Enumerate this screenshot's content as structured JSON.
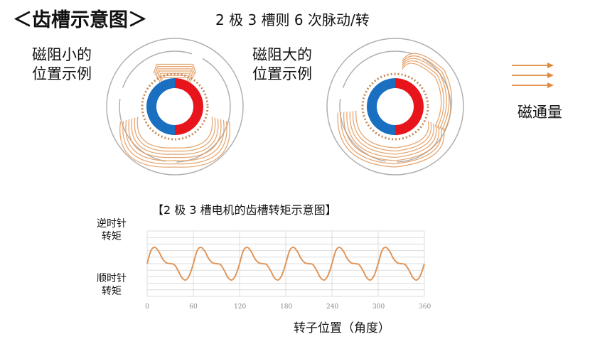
{
  "title": "＜齿槽示意图＞",
  "subtitle": "2 极 3 槽则 6 次脉动/转",
  "motor_left": {
    "label_line1": "磁阻小的",
    "label_line2": "位置示例"
  },
  "motor_right": {
    "label_line1": "磁阻大的",
    "label_line2": "位置示例"
  },
  "legend": {
    "flux_label": "磁通量",
    "arrow_color": "#e08a3c"
  },
  "colors": {
    "flux": "#e39a5c",
    "magnet_n": "#e8141c",
    "magnet_s": "#1a6fc0",
    "stator": "#b0b0b0",
    "curve": "#e0965a"
  },
  "chart_data": {
    "type": "line",
    "title": "【2 极 3 槽电机的齿槽转矩示意图】",
    "ylabel_top": [
      "逆时针",
      "转矩"
    ],
    "ylabel_bottom": [
      "顺时针",
      "转矩"
    ],
    "xlabel": "转子位置（角度）",
    "xlim": [
      0,
      360
    ],
    "ylim": [
      -2,
      2
    ],
    "x_ticks": [
      "0",
      "60",
      "120",
      "180",
      "240",
      "300",
      "360"
    ],
    "grid": true,
    "period_deg": 60,
    "period_x": [
      0,
      5,
      10,
      15,
      20,
      25,
      30,
      35,
      40,
      45,
      50,
      55,
      60
    ],
    "period_y": [
      0,
      0.8,
      1,
      0.75,
      0.3,
      0.05,
      0,
      -0.05,
      -0.4,
      -0.85,
      -1,
      -0.7,
      0
    ]
  }
}
